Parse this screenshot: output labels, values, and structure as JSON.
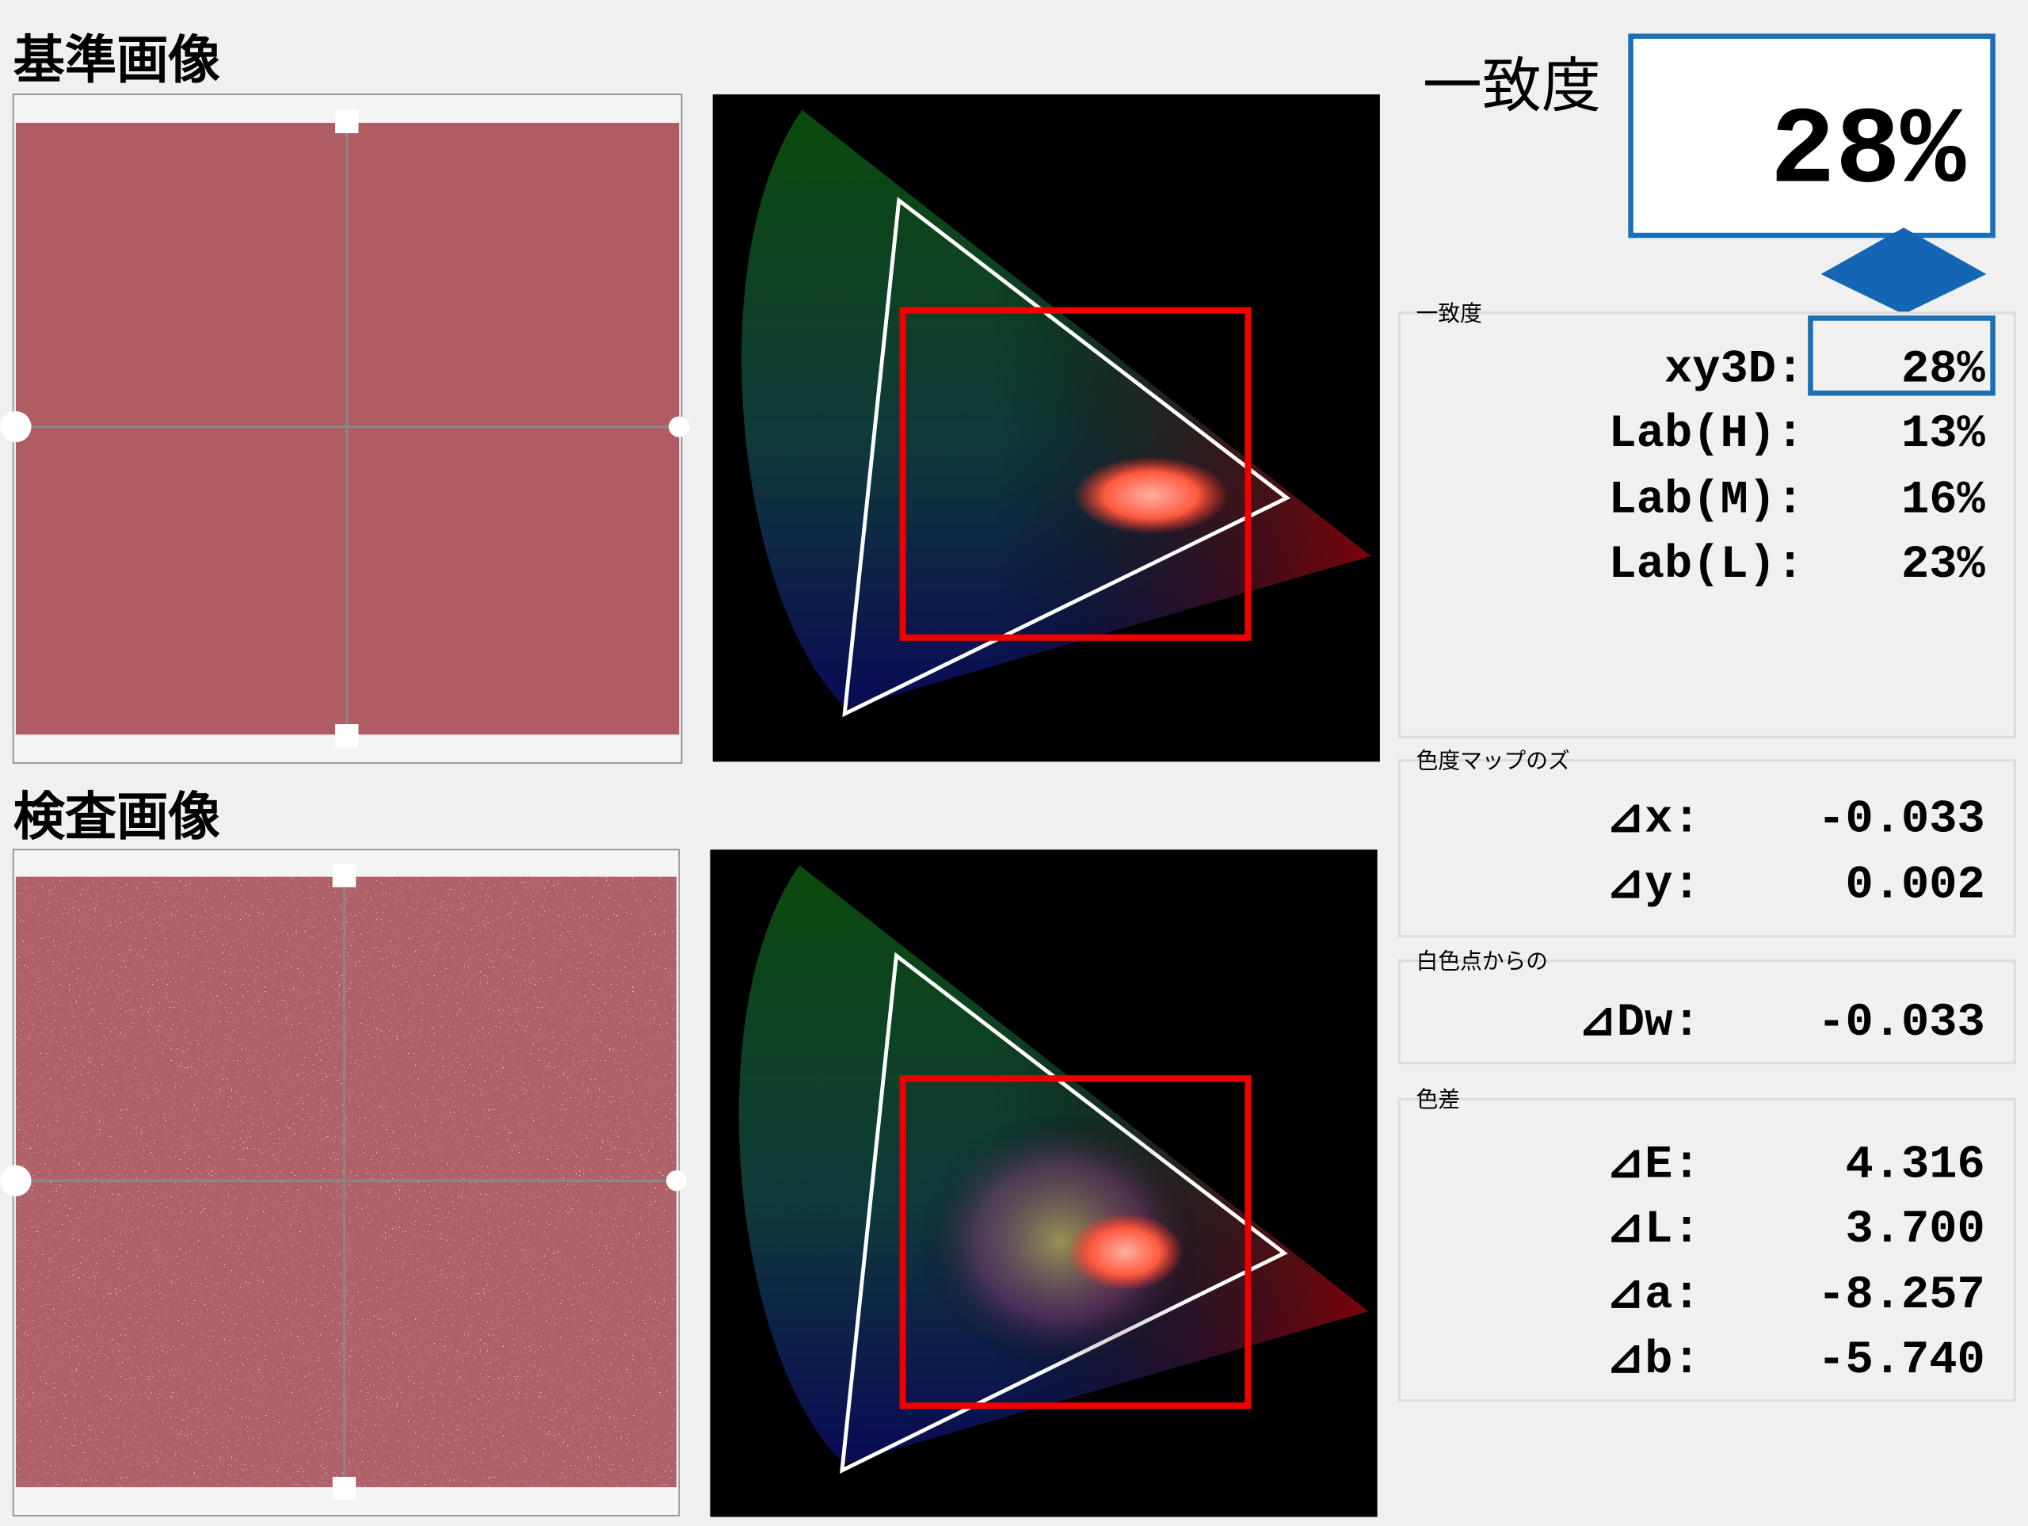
{
  "reference": {
    "title": "基準画像"
  },
  "inspection": {
    "title": "検査画像"
  },
  "match": {
    "label": "一致度",
    "value": "28%"
  },
  "panels": [
    {
      "title": "一致度",
      "rows": [
        {
          "label": "xy3D:",
          "value": "28%"
        },
        {
          "label": "Lab(H):",
          "value": "13%"
        },
        {
          "label": "Lab(M):",
          "value": "16%"
        },
        {
          "label": "Lab(L):",
          "value": "23%"
        }
      ]
    },
    {
      "title": "色度マップのズ",
      "rows": [
        {
          "label": "⊿x:",
          "value": "-0.033"
        },
        {
          "label": "⊿y:",
          "value": "0.002"
        }
      ]
    },
    {
      "title": "白色点からの",
      "rows": [
        {
          "label": "⊿Dw:",
          "value": "-0.033"
        }
      ]
    },
    {
      "title": "色差",
      "rows": [
        {
          "label": "⊿E:",
          "value": "4.316"
        },
        {
          "label": "⊿L:",
          "value": "3.700"
        },
        {
          "label": "⊿a:",
          "value": "-8.257"
        },
        {
          "label": "⊿b:",
          "value": "-5.740"
        }
      ]
    }
  ]
}
